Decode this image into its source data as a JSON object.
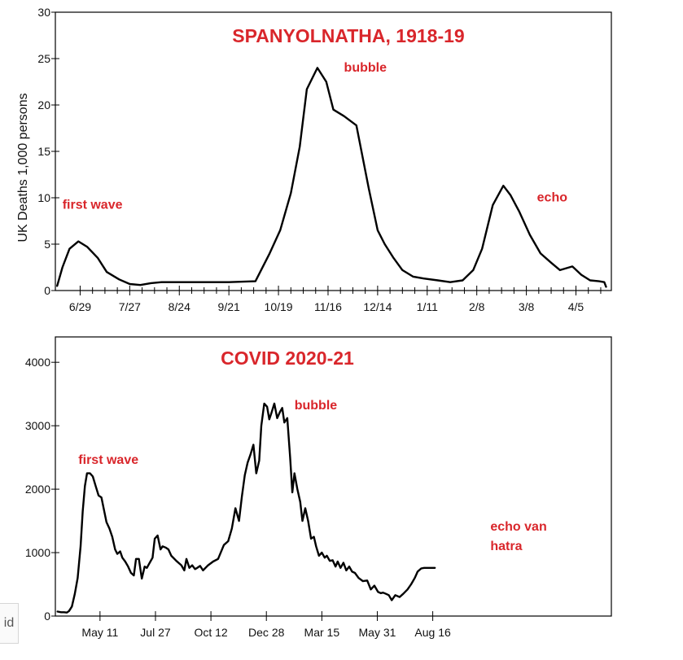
{
  "colors": {
    "annotation": "#d9262b",
    "line": "#000000",
    "axis": "#000000"
  },
  "corner_tag": "id",
  "chart_data": [
    {
      "type": "line",
      "title": "SPANYOLNATHA, 1918-19",
      "xlabel": "",
      "ylabel": "UK Deaths 1,000 persons",
      "xlim": [
        -14,
        300
      ],
      "ylim": [
        0,
        30
      ],
      "yticks": [
        0,
        5,
        10,
        15,
        20,
        25,
        30
      ],
      "xtick_positions": [
        0,
        28,
        56,
        84,
        112,
        140,
        168,
        196,
        224,
        252,
        280
      ],
      "xtick_labels": [
        "6/29",
        "7/27",
        "8/24",
        "9/21",
        "10/19",
        "11/16",
        "12/14",
        "1/11",
        "2/8",
        "3/8",
        "4/5"
      ],
      "series": [
        {
          "name": "UK deaths",
          "x": [
            -13,
            -10,
            -6,
            -1,
            4,
            10,
            15,
            22,
            28,
            34,
            40,
            46,
            54,
            70,
            84,
            99,
            107,
            113,
            119,
            124,
            128,
            134,
            139,
            143,
            149,
            156,
            163,
            168,
            172,
            177,
            182,
            188,
            194,
            202,
            209,
            216,
            222,
            227,
            233,
            239,
            243,
            248,
            254,
            260,
            266,
            271,
            278,
            283,
            288,
            293,
            296,
            297
          ],
          "y": [
            0.5,
            2.5,
            4.5,
            5.3,
            4.7,
            3.5,
            2,
            1.2,
            0.7,
            0.6,
            0.8,
            0.9,
            0.9,
            0.9,
            0.9,
            1.0,
            4,
            6.5,
            10.5,
            15.5,
            21.7,
            24,
            22.5,
            19.5,
            18.8,
            17.8,
            11,
            6.5,
            5,
            3.5,
            2.2,
            1.5,
            1.3,
            1.1,
            0.9,
            1.1,
            2.2,
            4.5,
            9.2,
            11.3,
            10.3,
            8.5,
            6,
            4,
            3,
            2.2,
            2.6,
            1.7,
            1.1,
            1.0,
            0.9,
            0.4
          ]
        }
      ],
      "annotations": [
        {
          "text": "first wave",
          "x": -10,
          "y": 8.8
        },
        {
          "text": "bubble",
          "x": 149,
          "y": 23.6
        },
        {
          "text": "echo",
          "x": 258,
          "y": 9.6
        }
      ]
    },
    {
      "type": "line",
      "title": "COVID   2020-21",
      "xlabel": "",
      "ylabel": "",
      "xlim": [
        -62,
        710
      ],
      "ylim": [
        0,
        4400
      ],
      "yticks": [
        0,
        1000,
        2000,
        3000,
        4000
      ],
      "xtick_positions": [
        0,
        77,
        154,
        231,
        308,
        385,
        462
      ],
      "xtick_labels": [
        "May 11",
        "Jul 27",
        "Oct 12",
        "Dec 28",
        "Mar 15",
        "May 31",
        "Aug 16"
      ],
      "series": [
        {
          "name": "UK deaths",
          "x": [
            -59,
            -54,
            -50,
            -46,
            -43,
            -39,
            -35,
            -31,
            -27,
            -24,
            -21,
            -18,
            -14,
            -10,
            -6,
            -2,
            2,
            5,
            9,
            13,
            17,
            21,
            24,
            28,
            31,
            35,
            39,
            43,
            47,
            50,
            54,
            58,
            62,
            65,
            69,
            73,
            76,
            80,
            84,
            87,
            91,
            95,
            99,
            106,
            113,
            117,
            120,
            124,
            128,
            132,
            135,
            139,
            143,
            150,
            157,
            164,
            172,
            178,
            183,
            188,
            193,
            197,
            201,
            205,
            209,
            213,
            217,
            221,
            224,
            228,
            232,
            235,
            238,
            242,
            246,
            250,
            253,
            256,
            260,
            264,
            267,
            270,
            274,
            278,
            281,
            285,
            289,
            293,
            297,
            300,
            304,
            308,
            312,
            315,
            319,
            323,
            327,
            330,
            334,
            338,
            342,
            346,
            350,
            354,
            359,
            365,
            371,
            376,
            381,
            386,
            390,
            393,
            397,
            401,
            405,
            410,
            416,
            421,
            427,
            432,
            437,
            441,
            446,
            450,
            454,
            460,
            465
          ],
          "y": [
            70,
            60,
            60,
            55,
            80,
            150,
            350,
            600,
            1100,
            1650,
            2050,
            2250,
            2250,
            2200,
            2050,
            1900,
            1870,
            1700,
            1480,
            1380,
            1250,
            1050,
            980,
            1020,
            920,
            860,
            780,
            680,
            640,
            900,
            900,
            590,
            780,
            760,
            840,
            920,
            1220,
            1270,
            1050,
            1100,
            1080,
            1050,
            950,
            870,
            800,
            720,
            900,
            760,
            800,
            740,
            760,
            790,
            720,
            800,
            860,
            900,
            1120,
            1180,
            1380,
            1700,
            1500,
            1880,
            2220,
            2420,
            2550,
            2700,
            2250,
            2450,
            3000,
            3350,
            3300,
            3100,
            3200,
            3350,
            3120,
            3220,
            3280,
            3050,
            3120,
            2500,
            1950,
            2250,
            2000,
            1800,
            1500,
            1700,
            1500,
            1220,
            1250,
            1100,
            950,
            1000,
            920,
            950,
            870,
            880,
            780,
            860,
            760,
            840,
            720,
            780,
            700,
            680,
            600,
            550,
            560,
            420,
            480,
            380,
            360,
            370,
            350,
            330,
            250,
            330,
            300,
            350,
            420,
            500,
            600,
            700,
            750,
            760,
            760,
            760,
            760
          ],
          "visible_x_max": 465
        }
      ],
      "annotations": [
        {
          "text": "first wave",
          "x": -30,
          "y": 2400
        },
        {
          "text": "bubble",
          "x": 270,
          "y": 3260
        },
        {
          "text": "echo van",
          "x": 542,
          "y": 1350
        },
        {
          "text": "hatra",
          "x": 542,
          "y": 1040
        }
      ]
    }
  ]
}
